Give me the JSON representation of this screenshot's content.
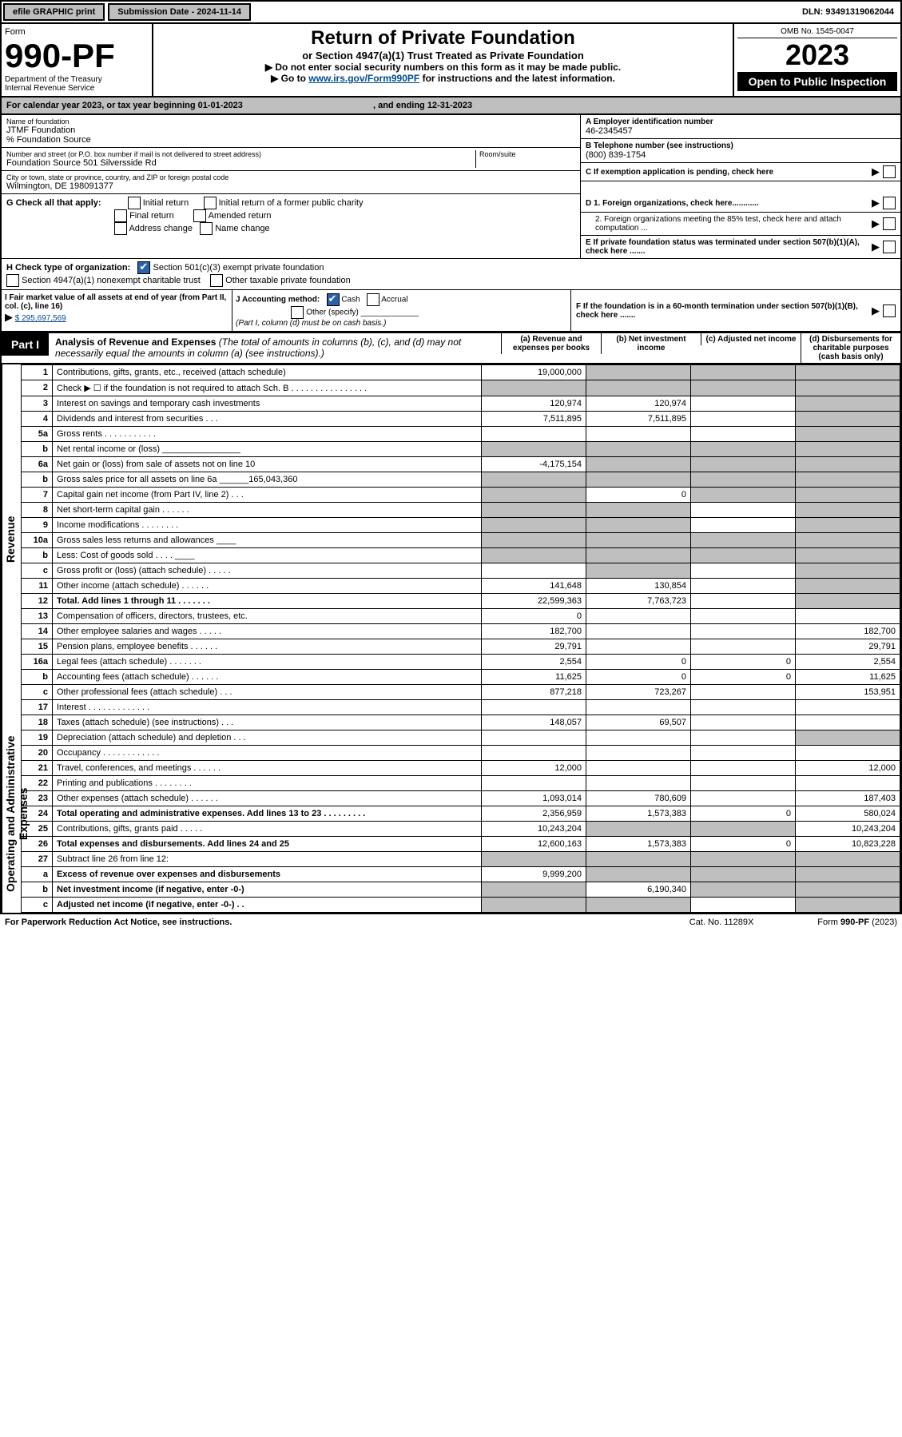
{
  "top": {
    "efile": "efile GRAPHIC print",
    "sub_label": "Submission Date - 2024-11-14",
    "dln": "DLN: 93491319062044"
  },
  "header": {
    "form_word": "Form",
    "form_no": "990-PF",
    "dept": "Department of the Treasury",
    "irs": "Internal Revenue Service",
    "title": "Return of Private Foundation",
    "subtitle": "or Section 4947(a)(1) Trust Treated as Private Foundation",
    "inst1": "▶ Do not enter social security numbers on this form as it may be made public.",
    "inst2_pre": "▶ Go to ",
    "inst2_link": "www.irs.gov/Form990PF",
    "inst2_post": " for instructions and the latest information.",
    "omb": "OMB No. 1545-0047",
    "year": "2023",
    "open": "Open to Public Inspection"
  },
  "cal": {
    "text": "For calendar year 2023, or tax year beginning 01-01-2023",
    "ending": ", and ending 12-31-2023"
  },
  "ident": {
    "name_label": "Name of foundation",
    "name": "JTMF Foundation",
    "care_of": "% Foundation Source",
    "addr_label": "Number and street (or P.O. box number if mail is not delivered to street address)",
    "addr": "Foundation Source 501 Silversside Rd",
    "room_label": "Room/suite",
    "city_label": "City or town, state or province, country, and ZIP or foreign postal code",
    "city": "Wilmington, DE  198091377",
    "ein_label": "A Employer identification number",
    "ein": "46-2345457",
    "tel_label": "B Telephone number (see instructions)",
    "tel": "(800) 839-1754",
    "c_label": "C If exemption application is pending, check here",
    "d1": "D 1. Foreign organizations, check here............",
    "d2": "2. Foreign organizations meeting the 85% test, check here and attach computation ...",
    "e": "E  If private foundation status was terminated under section 507(b)(1)(A), check here .......",
    "f": "F  If the foundation is in a 60-month termination under section 507(b)(1)(B), check here .......",
    "g_label": "G Check all that apply:",
    "g_opts": [
      "Initial return",
      "Final return",
      "Address change",
      "Initial return of a former public charity",
      "Amended return",
      "Name change"
    ],
    "h_label": "H Check type of organization:",
    "h_opt1": "Section 501(c)(3) exempt private foundation",
    "h_opt2": "Section 4947(a)(1) nonexempt charitable trust",
    "h_opt3": "Other taxable private foundation",
    "i_label": "I Fair market value of all assets at end of year (from Part II, col. (c), line 16)",
    "i_val": "$  295,697,569",
    "j_label": "J Accounting method:",
    "j_cash": "Cash",
    "j_accr": "Accrual",
    "j_other": "Other (specify)",
    "j_note": "(Part I, column (d) must be on cash basis.)"
  },
  "part1": {
    "tag": "Part I",
    "title": "Analysis of Revenue and Expenses",
    "note": "(The total of amounts in columns (b), (c), and (d) may not necessarily equal the amounts in column (a) (see instructions).)",
    "cols": {
      "a": "(a)   Revenue and expenses per books",
      "b": "(b)   Net investment income",
      "c": "(c)   Adjusted net income",
      "d": "(d)   Disbursements for charitable purposes (cash basis only)"
    },
    "side_rev": "Revenue",
    "side_exp": "Operating and Administrative Expenses",
    "rows": [
      {
        "n": "1",
        "t": "Contributions, gifts, grants, etc., received (attach schedule)",
        "a": "19,000,000",
        "shade": [
          "b",
          "c",
          "d"
        ]
      },
      {
        "n": "2",
        "t": "Check ▶ ☐ if the foundation is not required to attach Sch. B   .  .  .  .  .  .  .  .  .  .  .  .  .  .  .  .",
        "shade": [
          "a",
          "b",
          "c",
          "d"
        ]
      },
      {
        "n": "3",
        "t": "Interest on savings and temporary cash investments",
        "a": "120,974",
        "b": "120,974",
        "shade": [
          "d"
        ]
      },
      {
        "n": "4",
        "t": "Dividends and interest from securities   .   .   .",
        "a": "7,511,895",
        "b": "7,511,895",
        "shade": [
          "d"
        ]
      },
      {
        "n": "5a",
        "t": "Gross rents   .   .   .   .   .   .   .   .   .   .   .",
        "shade": [
          "d"
        ]
      },
      {
        "n": "b",
        "t": "Net rental income or (loss)  ________________",
        "shade": [
          "a",
          "b",
          "c",
          "d"
        ]
      },
      {
        "n": "6a",
        "t": "Net gain or (loss) from sale of assets not on line 10",
        "a": "-4,175,154",
        "shade": [
          "b",
          "c",
          "d"
        ]
      },
      {
        "n": "b",
        "t": "Gross sales price for all assets on line 6a ______165,043,360",
        "shade": [
          "a",
          "b",
          "c",
          "d"
        ]
      },
      {
        "n": "7",
        "t": "Capital gain net income (from Part IV, line 2)   .   .   .",
        "b": "0",
        "shade": [
          "a",
          "c",
          "d"
        ]
      },
      {
        "n": "8",
        "t": "Net short-term capital gain   .   .   .   .   .   .",
        "shade": [
          "a",
          "b",
          "d"
        ]
      },
      {
        "n": "9",
        "t": "Income modifications   .   .   .   .   .   .   .   .",
        "shade": [
          "a",
          "b",
          "d"
        ]
      },
      {
        "n": "10a",
        "t": "Gross sales less returns and allowances  ____",
        "shade": [
          "a",
          "b",
          "c",
          "d"
        ]
      },
      {
        "n": "b",
        "t": "Less: Cost of goods sold   .   .   .   .  ____",
        "shade": [
          "a",
          "b",
          "c",
          "d"
        ]
      },
      {
        "n": "c",
        "t": "Gross profit or (loss) (attach schedule)   .   .   .   .   .",
        "shade": [
          "b",
          "d"
        ]
      },
      {
        "n": "11",
        "t": "Other income (attach schedule)   .   .   .   .   .   .",
        "a": "141,648",
        "b": "130,854",
        "shade": [
          "d"
        ]
      },
      {
        "n": "12",
        "t": "Total. Add lines 1 through 11   .   .   .   .   .   .   .",
        "a": "22,599,363",
        "b": "7,763,723",
        "bold": true,
        "shade": [
          "d"
        ]
      },
      {
        "n": "13",
        "t": "Compensation of officers, directors, trustees, etc.",
        "a": "0"
      },
      {
        "n": "14",
        "t": "Other employee salaries and wages   .   .   .   .   .",
        "a": "182,700",
        "d": "182,700"
      },
      {
        "n": "15",
        "t": "Pension plans, employee benefits   .   .   .   .   .   .",
        "a": "29,791",
        "d": "29,791"
      },
      {
        "n": "16a",
        "t": "Legal fees (attach schedule)   .   .   .   .   .   .   .",
        "a": "2,554",
        "b": "0",
        "c": "0",
        "d": "2,554"
      },
      {
        "n": "b",
        "t": "Accounting fees (attach schedule)   .   .   .   .   .   .",
        "a": "11,625",
        "b": "0",
        "c": "0",
        "d": "11,625"
      },
      {
        "n": "c",
        "t": "Other professional fees (attach schedule)   .   .   .",
        "a": "877,218",
        "b": "723,267",
        "d": "153,951"
      },
      {
        "n": "17",
        "t": "Interest   .   .   .   .   .   .   .   .   .   .   .   .   ."
      },
      {
        "n": "18",
        "t": "Taxes (attach schedule) (see instructions)   .   .   .",
        "a": "148,057",
        "b": "69,507"
      },
      {
        "n": "19",
        "t": "Depreciation (attach schedule) and depletion   .   .   .",
        "shade": [
          "d"
        ]
      },
      {
        "n": "20",
        "t": "Occupancy   .   .   .   .   .   .   .   .   .   .   .   ."
      },
      {
        "n": "21",
        "t": "Travel, conferences, and meetings   .   .   .   .   .   .",
        "a": "12,000",
        "d": "12,000"
      },
      {
        "n": "22",
        "t": "Printing and publications   .   .   .   .   .   .   .   ."
      },
      {
        "n": "23",
        "t": "Other expenses (attach schedule)   .   .   .   .   .   .",
        "a": "1,093,014",
        "b": "780,609",
        "d": "187,403"
      },
      {
        "n": "24",
        "t": "Total operating and administrative expenses. Add lines 13 to 23   .   .   .   .   .   .   .   .   .",
        "a": "2,356,959",
        "b": "1,573,383",
        "c": "0",
        "d": "580,024",
        "bold": true
      },
      {
        "n": "25",
        "t": "Contributions, gifts, grants paid   .   .   .   .   .",
        "a": "10,243,204",
        "d": "10,243,204",
        "shade": [
          "b",
          "c"
        ]
      },
      {
        "n": "26",
        "t": "Total expenses and disbursements. Add lines 24 and 25",
        "a": "12,600,163",
        "b": "1,573,383",
        "c": "0",
        "d": "10,823,228",
        "bold": true
      },
      {
        "n": "27",
        "t": "Subtract line 26 from line 12:",
        "shade": [
          "a",
          "b",
          "c",
          "d"
        ]
      },
      {
        "n": "a",
        "t": "Excess of revenue over expenses and disbursements",
        "a": "9,999,200",
        "bold": true,
        "shade": [
          "b",
          "c",
          "d"
        ]
      },
      {
        "n": "b",
        "t": "Net investment income (if negative, enter -0-)",
        "b": "6,190,340",
        "bold": true,
        "shade": [
          "a",
          "c",
          "d"
        ]
      },
      {
        "n": "c",
        "t": "Adjusted net income (if negative, enter -0-)   .   .",
        "bold": true,
        "shade": [
          "a",
          "b",
          "d"
        ]
      }
    ]
  },
  "footer": {
    "left": "For Paperwork Reduction Act Notice, see instructions.",
    "mid": "Cat. No. 11289X",
    "right": "Form 990-PF (2023)"
  }
}
